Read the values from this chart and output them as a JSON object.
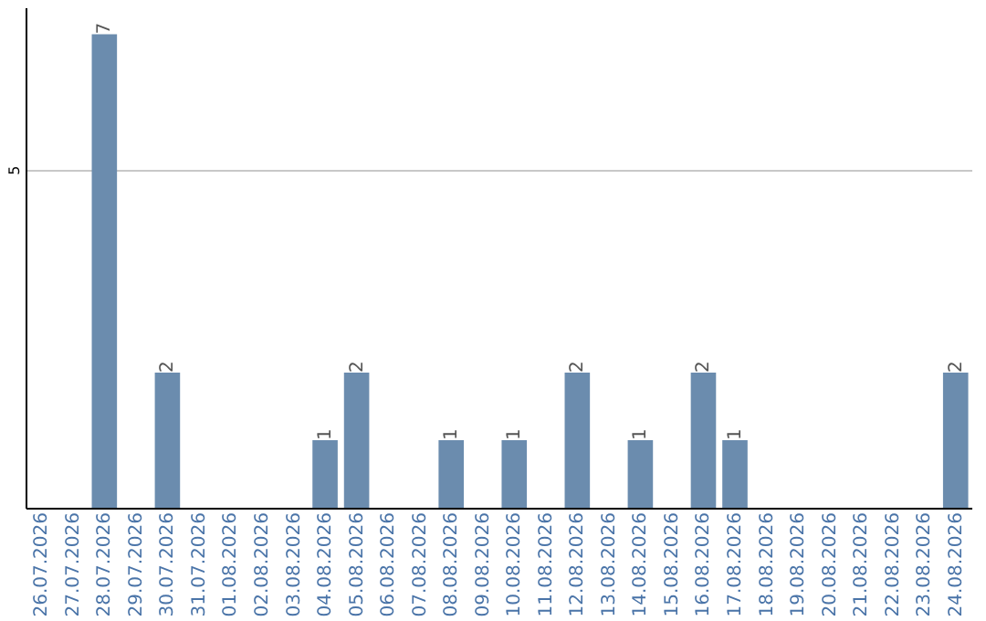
{
  "chart_data": {
    "type": "bar",
    "categories": [
      "26.07.2026",
      "27.07.2026",
      "28.07.2026",
      "29.07.2026",
      "30.07.2026",
      "31.07.2026",
      "01.08.2026",
      "02.08.2026",
      "03.08.2026",
      "04.08.2026",
      "05.08.2026",
      "06.08.2026",
      "07.08.2026",
      "08.08.2026",
      "09.08.2026",
      "10.08.2026",
      "11.08.2026",
      "12.08.2026",
      "13.08.2026",
      "14.08.2026",
      "15.08.2026",
      "16.08.2026",
      "17.08.2026",
      "18.08.2026",
      "19.08.2026",
      "20.08.2026",
      "21.08.2026",
      "22.08.2026",
      "23.08.2026",
      "24.08.2026"
    ],
    "values": [
      0,
      0,
      7,
      0,
      2,
      0,
      0,
      0,
      0,
      1,
      2,
      0,
      0,
      1,
      0,
      1,
      0,
      2,
      0,
      1,
      0,
      2,
      1,
      0,
      0,
      0,
      0,
      0,
      0,
      2
    ],
    "value_labels": [
      null,
      null,
      "7",
      null,
      "2",
      null,
      null,
      null,
      null,
      "1",
      "2",
      null,
      null,
      "1",
      null,
      "1",
      null,
      "2",
      null,
      "1",
      null,
      "2",
      "1",
      null,
      null,
      null,
      null,
      null,
      null,
      "2"
    ],
    "color": "#6b8cae",
    "ylim": [
      0,
      7.4
    ],
    "yticks": [
      5
    ],
    "grid": "y"
  }
}
